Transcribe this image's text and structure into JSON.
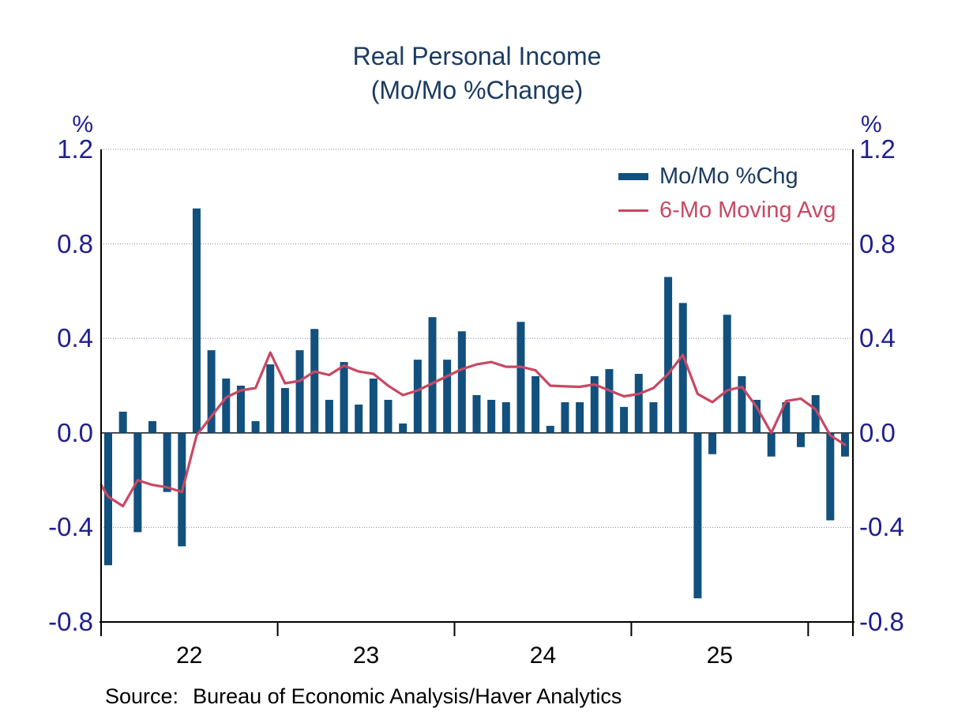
{
  "title": {
    "line1": "Real Personal Income",
    "line2": "(Mo/Mo %Change)"
  },
  "source": {
    "label": "Source:",
    "text": "Bureau of Economic Analysis/Haver Analytics"
  },
  "colors": {
    "bar": "#12507D",
    "line": "#C84862",
    "title_text": "#1C3C60",
    "tick_text": "#1F1F8F",
    "year_text": "#000000",
    "axis": "#000000",
    "grid": "#8585AE",
    "background": "#FFFFFF"
  },
  "chart_data": {
    "type": "bar",
    "combo": "bar+line",
    "title": "Real Personal Income",
    "subtitle": "(Mo/Mo %Change)",
    "unit_label": "%",
    "ylabel": "%",
    "ylim": [
      -0.8,
      1.2
    ],
    "y_tick_labels": [
      "1.2",
      "0.8",
      "0.4",
      "0.0",
      "-0.4",
      "-0.8"
    ],
    "x_year_labels": [
      "22",
      "23",
      "24",
      "25"
    ],
    "months_per_year": 12,
    "grid": "dotted horizontal gridlines at ticks; solid zero line",
    "legend_position": "top-right inside plot",
    "series": [
      {
        "name": "Mo/Mo %Chg",
        "type": "bar",
        "color": "#12507D",
        "values": [
          -0.56,
          0.09,
          -0.42,
          0.05,
          -0.25,
          -0.48,
          0.95,
          0.35,
          0.23,
          0.2,
          0.05,
          0.29,
          0.19,
          0.35,
          0.44,
          0.14,
          0.3,
          0.12,
          0.23,
          0.14,
          0.04,
          0.31,
          0.49,
          0.31,
          0.43,
          0.16,
          0.14,
          0.13,
          0.47,
          0.24,
          0.03,
          0.13,
          0.13,
          0.24,
          0.27,
          0.11,
          0.25,
          0.13,
          0.66,
          0.55,
          -0.7,
          -0.09,
          0.5,
          0.24,
          0.14,
          -0.1,
          0.13,
          -0.06,
          0.16,
          -0.37,
          -0.1
        ]
      },
      {
        "name": "6-Mo Moving Avg",
        "type": "line",
        "color": "#C84862",
        "lead_in_value": -0.22,
        "values": [
          -0.27,
          -0.31,
          -0.2,
          -0.22,
          -0.23,
          -0.25,
          -0.01,
          0.07,
          0.15,
          0.18,
          0.19,
          0.34,
          0.21,
          0.22,
          0.26,
          0.245,
          0.285,
          0.26,
          0.25,
          0.2,
          0.16,
          0.18,
          0.21,
          0.24,
          0.27,
          0.29,
          0.3,
          0.28,
          0.28,
          0.265,
          0.2,
          0.197,
          0.195,
          0.205,
          0.18,
          0.155,
          0.165,
          0.19,
          0.25,
          0.33,
          0.165,
          0.13,
          0.18,
          0.195,
          0.11,
          0.0,
          0.135,
          0.145,
          0.1,
          -0.01,
          -0.05
        ]
      }
    ]
  }
}
